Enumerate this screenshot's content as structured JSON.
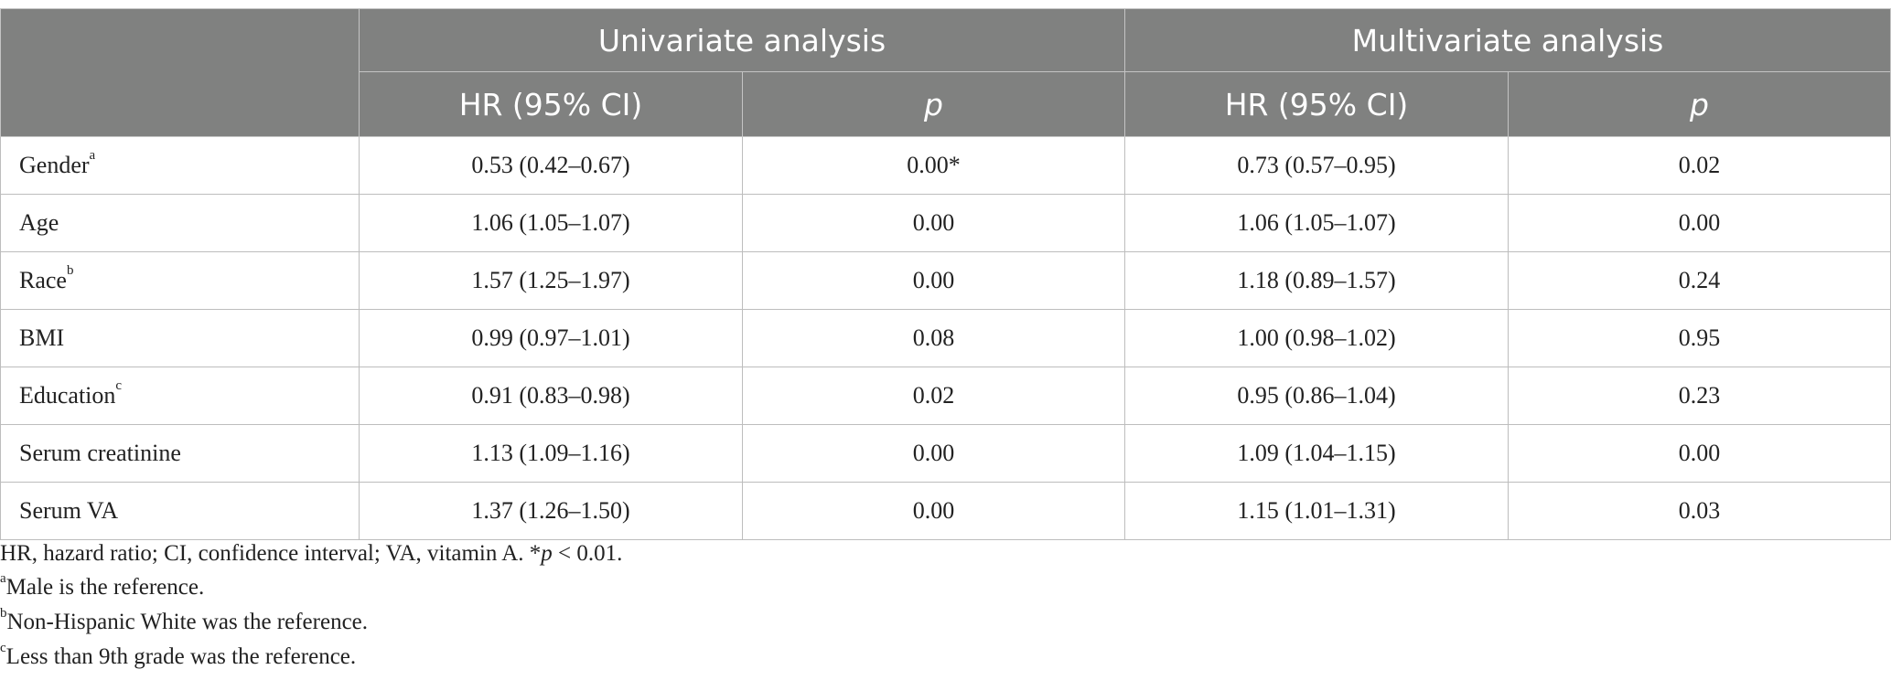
{
  "table": {
    "groups": [
      "Univariate analysis",
      "Multivariate analysis"
    ],
    "subheaders": [
      "HR (95% CI)",
      "p",
      "HR (95% CI)",
      "p"
    ],
    "rows": [
      {
        "label": "Gender",
        "sup": "a",
        "cells": [
          "0.53 (0.42–0.67)",
          "0.00*",
          "0.73 (0.57–0.95)",
          "0.02"
        ]
      },
      {
        "label": "Age",
        "cells": [
          "1.06 (1.05–1.07)",
          "0.00",
          "1.06 (1.05–1.07)",
          "0.00"
        ]
      },
      {
        "label": "Race",
        "sup": "b",
        "cells": [
          "1.57 (1.25–1.97)",
          "0.00",
          "1.18 (0.89–1.57)",
          "0.24"
        ]
      },
      {
        "label": "BMI",
        "cells": [
          "0.99 (0.97–1.01)",
          "0.08",
          "1.00 (0.98–1.02)",
          "0.95"
        ]
      },
      {
        "label": "Education",
        "sup": "c",
        "cells": [
          "0.91 (0.83–0.98)",
          "0.02",
          "0.95 (0.86–1.04)",
          "0.23"
        ]
      },
      {
        "label": "Serum creatinine",
        "cells": [
          "1.13 (1.09–1.16)",
          "0.00",
          "1.09 (1.04–1.15)",
          "0.00"
        ]
      },
      {
        "label": "Serum VA",
        "cells": [
          "1.37 (1.26–1.50)",
          "0.00",
          "1.15 (1.01–1.31)",
          "0.03"
        ]
      }
    ]
  },
  "footnotes": [
    {
      "text": "HR, hazard ratio; CI, confidence interval; VA, vitamin A. *",
      "italic": "p",
      "rest": " < 0.01."
    },
    {
      "sup": "a",
      "text": "Male is the reference."
    },
    {
      "sup": "b",
      "text": "Non-Hispanic White was the reference."
    },
    {
      "sup": "c",
      "text": "Less than 9th grade was the reference."
    }
  ]
}
